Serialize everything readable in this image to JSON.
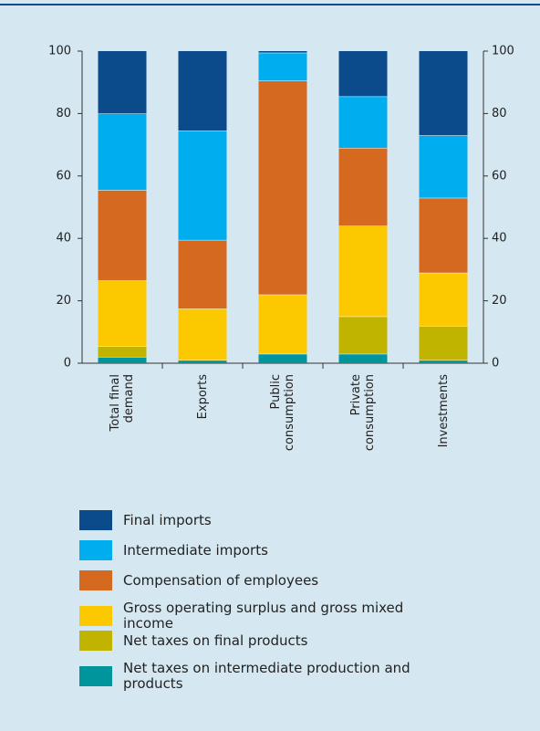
{
  "chart_data": {
    "type": "stacked_bar",
    "categories": [
      "Total final demand",
      "Exports",
      "Public consumption",
      "Private consumption",
      "Investments"
    ],
    "series": [
      {
        "name": "Final imports",
        "color": "#0b4a8b",
        "values": [
          20,
          25.5,
          0.5,
          14.5,
          27
        ]
      },
      {
        "name": "Intermediate imports",
        "color": "#00aeef",
        "values": [
          24.5,
          35,
          9,
          16.5,
          20
        ]
      },
      {
        "name": "Compensation of employees",
        "color": "#d5691f",
        "values": [
          29,
          22,
          68.5,
          25,
          24
        ]
      },
      {
        "name": "Gross operating surplus and gross mixed income",
        "color": "#fcc800",
        "values": [
          21,
          16.5,
          19,
          29,
          17
        ]
      },
      {
        "name": "Net taxes on final products",
        "color": "#c0b400",
        "values": [
          3.5,
          0,
          0,
          12,
          11
        ]
      },
      {
        "name": "Net taxes on intermediate production and products",
        "color": "#00949c",
        "values": [
          2,
          1,
          3,
          3,
          1
        ]
      }
    ],
    "ylim": [
      0,
      100
    ],
    "yticks": [
      0,
      20,
      40,
      60,
      80,
      100
    ],
    "y2lim": [
      0,
      100
    ],
    "y2ticks": [
      0,
      20,
      40,
      60,
      80,
      100
    ]
  }
}
